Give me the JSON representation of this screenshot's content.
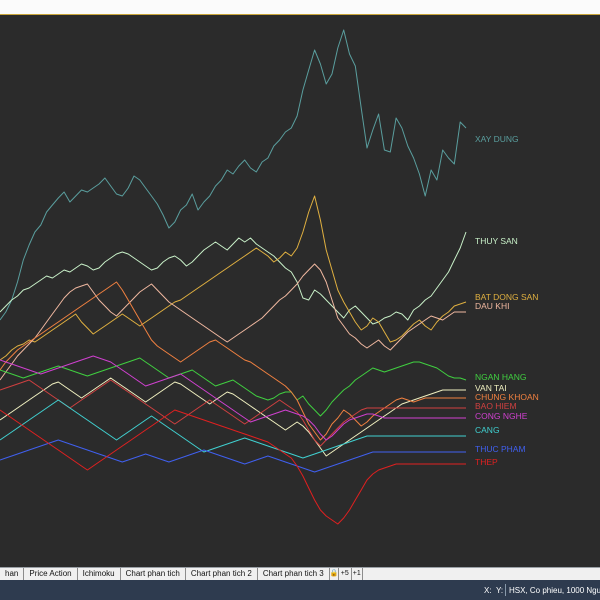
{
  "tabs": [
    {
      "label": "han",
      "name": "tab-han"
    },
    {
      "label": "Price Action",
      "name": "tab-price-action"
    },
    {
      "label": "Ichimoku",
      "name": "tab-ichimoku"
    },
    {
      "label": "Chart phan tich",
      "name": "tab-chart-phan-tich"
    },
    {
      "label": "Chart phan tich 2",
      "name": "tab-chart-phan-tich-2"
    },
    {
      "label": "Chart phan tich 3",
      "name": "tab-chart-phan-tich-3"
    }
  ],
  "tab_controls": {
    "lock": "🔒",
    "plus5": "+5",
    "plus1": "+1"
  },
  "status": {
    "x_label": "X:",
    "y_label": "Y:",
    "info": "HSX, Co phieu, 1000 Nguye"
  },
  "colors": {
    "background": "#2b2b2b",
    "statusbar": "#2e3b4f",
    "topbar_border": "#c9a53a"
  },
  "chart_data": {
    "type": "line",
    "title": "",
    "x": [
      0,
      1,
      2,
      3,
      4,
      5,
      6,
      7,
      8,
      9,
      10,
      11,
      12,
      13,
      14,
      15,
      16,
      17,
      18,
      19,
      20,
      21,
      22,
      23,
      24,
      25,
      26,
      27,
      28,
      29,
      30,
      31,
      32,
      33,
      34,
      35,
      36,
      37,
      38,
      39,
      40,
      41,
      42,
      43,
      44,
      45,
      46,
      47,
      48,
      49,
      50,
      51,
      52,
      53,
      54,
      55,
      56,
      57,
      58,
      59,
      60,
      61,
      62,
      63,
      64,
      65,
      66,
      67,
      68,
      69,
      70,
      71,
      72,
      73,
      74,
      75,
      76,
      77,
      78,
      79,
      80
    ],
    "series": [
      {
        "name": "XAY DUNG",
        "color": "#5a9e9e",
        "values": [
          320,
          312,
          300,
          282,
          260,
          245,
          232,
          225,
          212,
          205,
          198,
          192,
          202,
          196,
          190,
          192,
          188,
          184,
          178,
          186,
          194,
          196,
          188,
          176,
          180,
          188,
          196,
          204,
          215,
          228,
          222,
          210,
          205,
          194,
          210,
          202,
          196,
          186,
          180,
          170,
          174,
          166,
          160,
          168,
          172,
          162,
          158,
          146,
          140,
          132,
          128,
          116,
          90,
          70,
          50,
          64,
          84,
          74,
          48,
          30,
          54,
          66,
          108,
          148,
          130,
          114,
          150,
          152,
          118,
          128,
          146,
          158,
          174,
          196,
          170,
          180,
          150,
          158,
          164,
          122,
          128
        ]
      },
      {
        "name": "THUY SAN",
        "color": "#c8f0c8",
        "values": [
          312,
          306,
          300,
          296,
          290,
          288,
          284,
          280,
          276,
          278,
          274,
          270,
          272,
          268,
          264,
          266,
          270,
          268,
          262,
          258,
          254,
          252,
          254,
          258,
          262,
          266,
          270,
          268,
          262,
          258,
          256,
          260,
          266,
          262,
          256,
          250,
          246,
          242,
          246,
          250,
          244,
          238,
          242,
          238,
          244,
          248,
          252,
          256,
          262,
          268,
          272,
          282,
          298,
          300,
          290,
          294,
          300,
          306,
          312,
          318,
          310,
          306,
          312,
          318,
          324,
          322,
          318,
          316,
          312,
          314,
          320,
          310,
          306,
          300,
          296,
          288,
          280,
          272,
          260,
          248,
          232
        ]
      },
      {
        "name": "BAT DONG SAN",
        "color": "#e0b040",
        "values": [
          360,
          356,
          350,
          346,
          344,
          340,
          342,
          338,
          334,
          330,
          326,
          322,
          318,
          314,
          322,
          328,
          334,
          330,
          326,
          322,
          318,
          314,
          318,
          322,
          326,
          322,
          318,
          314,
          310,
          306,
          302,
          300,
          296,
          292,
          288,
          284,
          280,
          276,
          272,
          268,
          264,
          260,
          256,
          252,
          248,
          252,
          256,
          262,
          258,
          252,
          256,
          248,
          232,
          212,
          196,
          220,
          250,
          270,
          290,
          302,
          312,
          322,
          330,
          326,
          318,
          322,
          332,
          342,
          340,
          336,
          330,
          324,
          320,
          326,
          330,
          322,
          316,
          312,
          306,
          304,
          302
        ]
      },
      {
        "name": "DAU KHI",
        "color": "#f0b8a0",
        "values": [
          380,
          372,
          364,
          356,
          350,
          344,
          338,
          330,
          322,
          314,
          306,
          298,
          292,
          288,
          286,
          284,
          292,
          300,
          306,
          312,
          316,
          310,
          304,
          298,
          292,
          288,
          284,
          290,
          296,
          302,
          306,
          310,
          314,
          318,
          322,
          326,
          330,
          334,
          338,
          342,
          338,
          334,
          330,
          326,
          322,
          318,
          312,
          306,
          300,
          296,
          290,
          284,
          276,
          270,
          264,
          270,
          282,
          300,
          318,
          326,
          334,
          338,
          344,
          348,
          344,
          340,
          346,
          350,
          344,
          338,
          332,
          328,
          324,
          320,
          316,
          318,
          320,
          316,
          312,
          312,
          312
        ]
      },
      {
        "name": "NGAN HANG",
        "color": "#40d040",
        "values": [
          370,
          372,
          374,
          376,
          378,
          376,
          374,
          372,
          370,
          368,
          366,
          368,
          370,
          372,
          374,
          376,
          374,
          372,
          370,
          368,
          366,
          364,
          362,
          360,
          358,
          362,
          366,
          370,
          374,
          378,
          376,
          374,
          372,
          370,
          374,
          378,
          382,
          386,
          384,
          382,
          380,
          384,
          388,
          392,
          396,
          398,
          400,
          398,
          394,
          392,
          392,
          400,
          396,
          404,
          410,
          416,
          410,
          402,
          396,
          390,
          386,
          380,
          376,
          372,
          368,
          370,
          372,
          370,
          368,
          366,
          364,
          362,
          362,
          364,
          366,
          368,
          372,
          376,
          378,
          378,
          380
        ]
      },
      {
        "name": "VAN TAI",
        "color": "#f0f0c0",
        "values": [
          420,
          416,
          412,
          408,
          404,
          400,
          396,
          392,
          388,
          384,
          382,
          386,
          390,
          394,
          398,
          394,
          390,
          386,
          382,
          378,
          382,
          386,
          390,
          394,
          398,
          402,
          398,
          394,
          390,
          386,
          382,
          384,
          388,
          392,
          396,
          400,
          404,
          400,
          396,
          392,
          394,
          398,
          402,
          406,
          410,
          414,
          418,
          422,
          426,
          430,
          426,
          422,
          426,
          432,
          440,
          448,
          456,
          452,
          448,
          444,
          440,
          436,
          432,
          428,
          424,
          420,
          416,
          412,
          408,
          404,
          402,
          400,
          398,
          396,
          394,
          392,
          390,
          390,
          390,
          390,
          390
        ]
      },
      {
        "name": "CHUNG KHOAN",
        "color": "#f08040",
        "values": [
          370,
          362,
          356,
          350,
          346,
          342,
          338,
          334,
          330,
          326,
          322,
          318,
          314,
          310,
          306,
          302,
          298,
          294,
          290,
          286,
          282,
          290,
          300,
          310,
          320,
          330,
          340,
          346,
          350,
          354,
          358,
          362,
          358,
          354,
          350,
          346,
          342,
          340,
          344,
          348,
          352,
          356,
          360,
          362,
          366,
          370,
          374,
          378,
          382,
          386,
          392,
          400,
          412,
          424,
          432,
          440,
          434,
          424,
          418,
          410,
          414,
          420,
          426,
          422,
          416,
          412,
          408,
          404,
          400,
          398,
          400,
          402,
          400,
          398,
          398,
          398,
          398,
          398,
          398,
          398,
          398
        ]
      },
      {
        "name": "BAO HIEM",
        "color": "#d04040",
        "values": [
          390,
          388,
          386,
          384,
          382,
          380,
          384,
          388,
          392,
          396,
          400,
          404,
          408,
          404,
          400,
          396,
          392,
          388,
          384,
          380,
          384,
          388,
          392,
          396,
          400,
          404,
          408,
          412,
          416,
          420,
          424,
          420,
          416,
          412,
          408,
          404,
          400,
          404,
          408,
          412,
          416,
          420,
          424,
          420,
          416,
          412,
          408,
          404,
          400,
          404,
          408,
          412,
          420,
          430,
          440,
          446,
          440,
          434,
          428,
          422,
          418,
          414,
          410,
          408,
          408,
          408,
          408,
          408,
          408,
          408,
          408,
          408,
          408,
          408,
          408,
          408,
          408,
          408,
          408,
          408,
          408
        ]
      },
      {
        "name": "CONG NGHE",
        "color": "#d040d0",
        "values": [
          360,
          362,
          364,
          366,
          368,
          370,
          372,
          374,
          372,
          370,
          368,
          366,
          364,
          362,
          360,
          358,
          356,
          358,
          360,
          362,
          366,
          370,
          374,
          378,
          382,
          386,
          384,
          382,
          380,
          378,
          376,
          374,
          378,
          382,
          386,
          390,
          394,
          398,
          402,
          406,
          410,
          414,
          418,
          422,
          420,
          418,
          416,
          414,
          412,
          410,
          412,
          414,
          416,
          420,
          426,
          434,
          440,
          436,
          430,
          424,
          420,
          418,
          416,
          414,
          414,
          416,
          418,
          418,
          418,
          418,
          418,
          418,
          418,
          418,
          418,
          418,
          418,
          418,
          418,
          418,
          418
        ]
      },
      {
        "name": "CANG",
        "color": "#40d0d0",
        "values": [
          440,
          436,
          432,
          428,
          424,
          420,
          416,
          412,
          408,
          404,
          400,
          404,
          408,
          412,
          416,
          420,
          424,
          428,
          432,
          436,
          440,
          436,
          432,
          428,
          424,
          420,
          416,
          420,
          424,
          428,
          432,
          436,
          440,
          444,
          448,
          452,
          450,
          448,
          446,
          444,
          442,
          440,
          438,
          440,
          442,
          444,
          446,
          448,
          450,
          452,
          454,
          456,
          458,
          456,
          454,
          452,
          450,
          448,
          446,
          444,
          442,
          440,
          438,
          436,
          436,
          436,
          436,
          436,
          436,
          436,
          436,
          436,
          436,
          436,
          436,
          436,
          436,
          436,
          436,
          436,
          436
        ]
      },
      {
        "name": "THUC PHAM",
        "color": "#4060f0",
        "values": [
          460,
          458,
          456,
          454,
          452,
          450,
          448,
          446,
          444,
          442,
          440,
          442,
          444,
          446,
          448,
          450,
          452,
          454,
          456,
          458,
          460,
          462,
          460,
          458,
          456,
          454,
          456,
          458,
          460,
          462,
          460,
          458,
          456,
          454,
          452,
          450,
          452,
          454,
          456,
          458,
          460,
          462,
          464,
          462,
          460,
          458,
          456,
          458,
          460,
          462,
          464,
          466,
          468,
          470,
          472,
          470,
          468,
          466,
          464,
          462,
          460,
          458,
          456,
          454,
          452,
          452,
          452,
          452,
          452,
          452,
          452,
          452,
          452,
          452,
          452,
          452,
          452,
          452,
          452,
          452,
          452
        ]
      },
      {
        "name": "THEP",
        "color": "#e02020",
        "values": [
          410,
          414,
          418,
          422,
          426,
          430,
          434,
          438,
          442,
          446,
          450,
          454,
          458,
          462,
          466,
          470,
          466,
          462,
          458,
          454,
          450,
          446,
          442,
          438,
          434,
          430,
          426,
          422,
          418,
          414,
          410,
          412,
          414,
          416,
          418,
          420,
          422,
          424,
          426,
          428,
          430,
          432,
          434,
          436,
          438,
          440,
          442,
          446,
          450,
          454,
          458,
          466,
          476,
          488,
          500,
          510,
          516,
          520,
          524,
          518,
          510,
          500,
          490,
          480,
          474,
          470,
          468,
          466,
          464,
          464,
          464,
          464,
          464,
          464,
          464,
          464,
          464,
          464,
          464,
          464,
          464
        ]
      }
    ],
    "ylim": [
      600,
      0
    ],
    "legend_placement": "right-of-lines",
    "grid": false
  }
}
